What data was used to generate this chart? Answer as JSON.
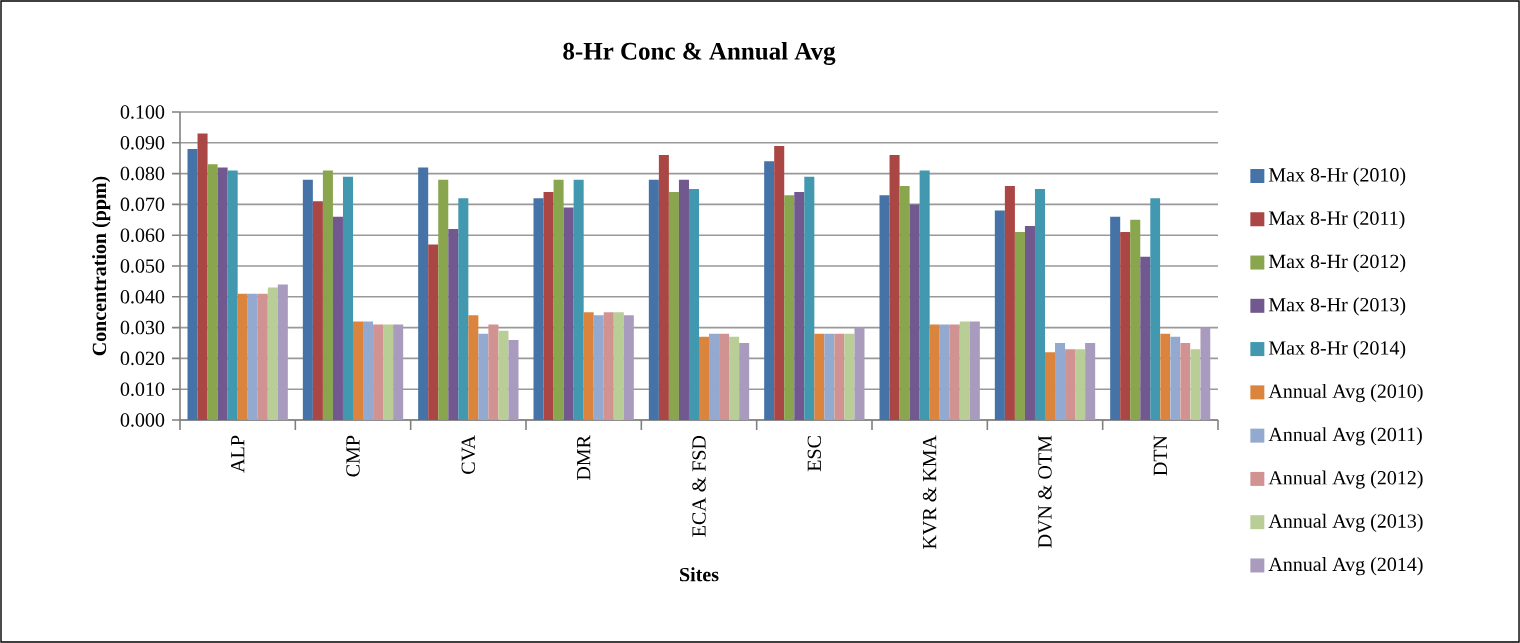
{
  "chart_data": {
    "type": "bar",
    "title": "8-Hr Conc & Annual Avg",
    "xlabel": "Sites",
    "ylabel": "Concentration (ppm)",
    "categories": [
      "ALP",
      "CMP",
      "CVA",
      "DMR",
      "ECA & FSD",
      "ESC",
      "KVR & KMA",
      "DVN & OTM",
      "DTN"
    ],
    "series": [
      {
        "name": "Max 8-Hr (2010)",
        "color": "#4572a7",
        "values": [
          0.088,
          0.078,
          0.082,
          0.072,
          0.078,
          0.084,
          0.073,
          0.068,
          0.066
        ]
      },
      {
        "name": "Max 8-Hr (2011)",
        "color": "#aa4643",
        "values": [
          0.093,
          0.071,
          0.057,
          0.074,
          0.086,
          0.089,
          0.086,
          0.076,
          0.061
        ]
      },
      {
        "name": "Max 8-Hr (2012)",
        "color": "#89a54e",
        "values": [
          0.083,
          0.081,
          0.078,
          0.078,
          0.074,
          0.073,
          0.076,
          0.061,
          0.065
        ]
      },
      {
        "name": "Max 8-Hr (2013)",
        "color": "#71588f",
        "values": [
          0.082,
          0.066,
          0.062,
          0.069,
          0.078,
          0.074,
          0.07,
          0.063,
          0.053
        ]
      },
      {
        "name": "Max 8-Hr (2014)",
        "color": "#4198af",
        "values": [
          0.081,
          0.079,
          0.072,
          0.078,
          0.075,
          0.079,
          0.081,
          0.075,
          0.072
        ]
      },
      {
        "name": "Annual Avg (2010)",
        "color": "#db843d",
        "values": [
          0.041,
          0.032,
          0.034,
          0.035,
          0.027,
          0.028,
          0.031,
          0.022,
          0.028
        ]
      },
      {
        "name": "Annual Avg (2011)",
        "color": "#93a9cf",
        "values": [
          0.041,
          0.032,
          0.028,
          0.034,
          0.028,
          0.028,
          0.031,
          0.025,
          0.027
        ]
      },
      {
        "name": "Annual Avg (2012)",
        "color": "#d19392",
        "values": [
          0.041,
          0.031,
          0.031,
          0.035,
          0.028,
          0.028,
          0.031,
          0.023,
          0.025
        ]
      },
      {
        "name": "Annual Avg (2013)",
        "color": "#b9cd96",
        "values": [
          0.043,
          0.031,
          0.029,
          0.035,
          0.027,
          0.028,
          0.032,
          0.023,
          0.023
        ]
      },
      {
        "name": "Annual Avg (2014)",
        "color": "#a99bbd",
        "values": [
          0.044,
          0.031,
          0.026,
          0.034,
          0.025,
          0.03,
          0.032,
          0.025,
          0.03
        ]
      }
    ],
    "ylim": [
      0,
      0.1
    ],
    "yticks": [
      {
        "value": 0,
        "label": "0.000"
      },
      {
        "value": 0.01,
        "label": "0.010"
      },
      {
        "value": 0.02,
        "label": "0.020"
      },
      {
        "value": 0.03,
        "label": "0.030"
      },
      {
        "value": 0.04,
        "label": "0.040"
      },
      {
        "value": 0.05,
        "label": "0.050"
      },
      {
        "value": 0.06,
        "label": "0.060"
      },
      {
        "value": 0.07,
        "label": "0.070"
      },
      {
        "value": 0.08,
        "label": "0.080"
      },
      {
        "value": 0.09,
        "label": "0.090"
      },
      {
        "value": 0.1,
        "label": "0.100"
      }
    ],
    "grid": "y",
    "legend": "right"
  }
}
